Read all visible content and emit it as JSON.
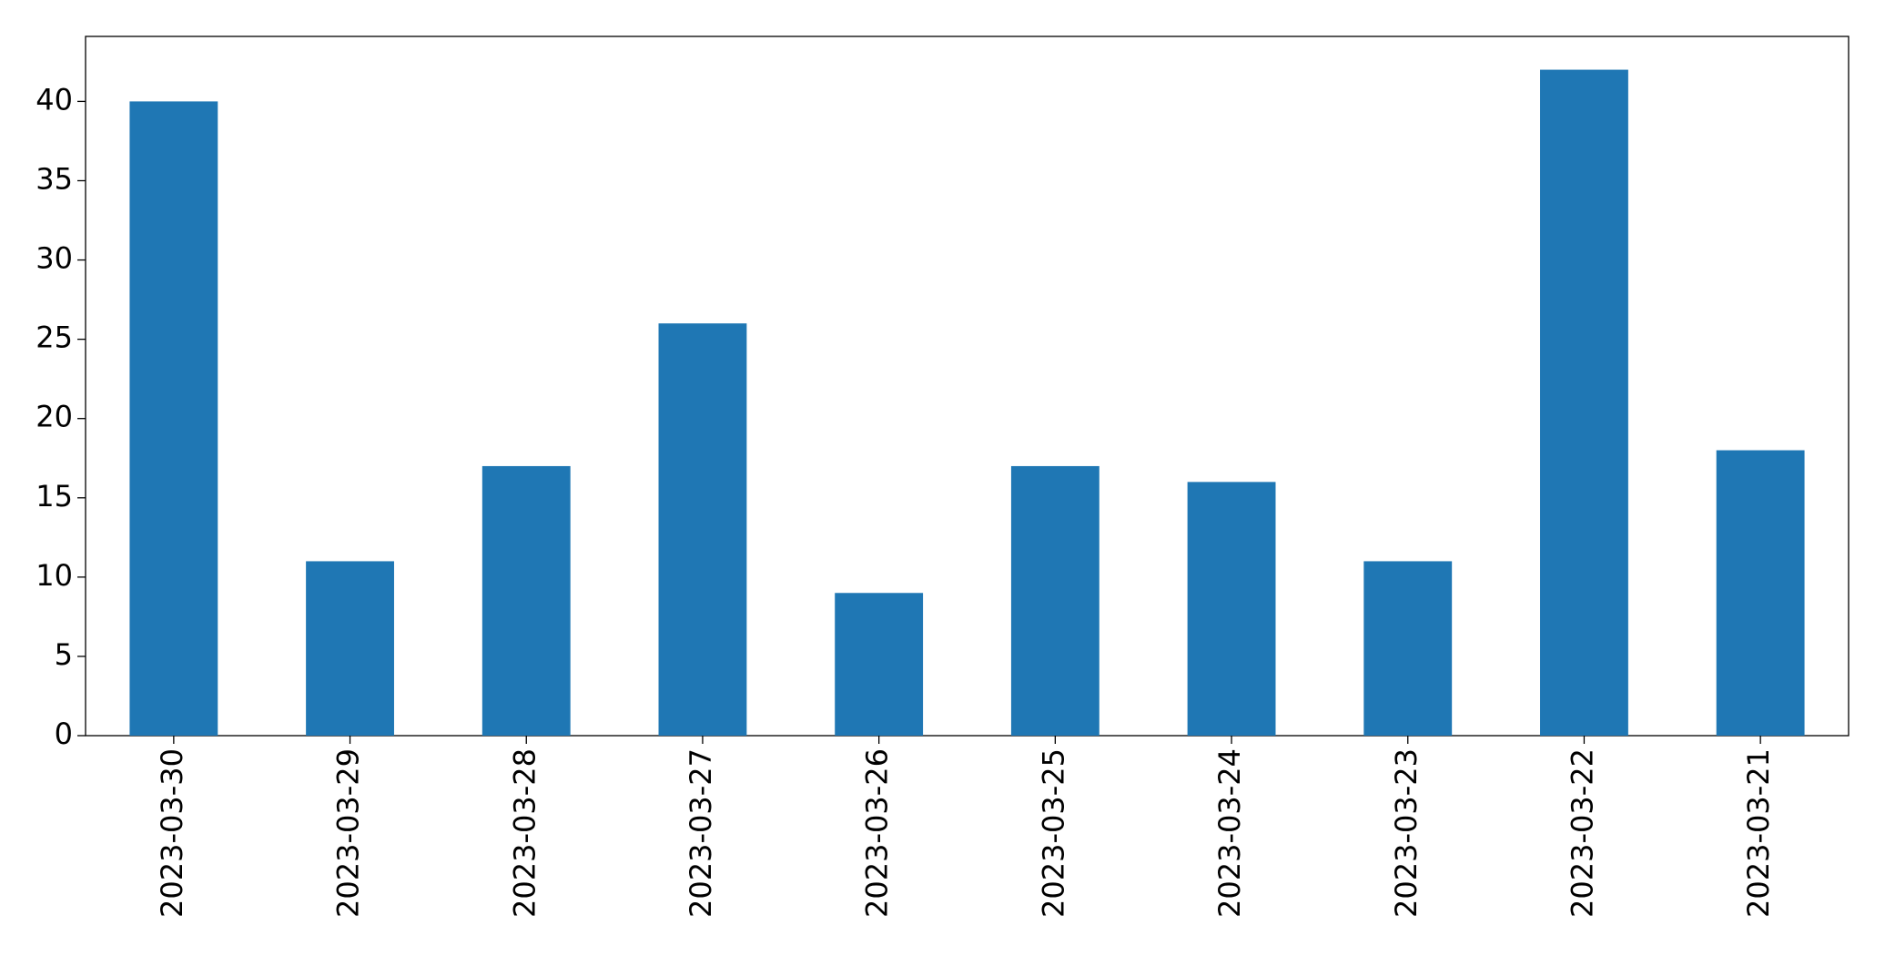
{
  "chart_data": {
    "type": "bar",
    "categories": [
      "2023-03-30",
      "2023-03-29",
      "2023-03-28",
      "2023-03-27",
      "2023-03-26",
      "2023-03-25",
      "2023-03-24",
      "2023-03-23",
      "2023-03-22",
      "2023-03-21"
    ],
    "values": [
      40,
      11,
      17,
      26,
      9,
      17,
      16,
      11,
      42,
      18
    ],
    "color": "#1f77b4",
    "ylim": [
      0,
      44.1
    ],
    "yticks": [
      0,
      5,
      10,
      15,
      20,
      25,
      30,
      35,
      40
    ],
    "grid": false
  }
}
